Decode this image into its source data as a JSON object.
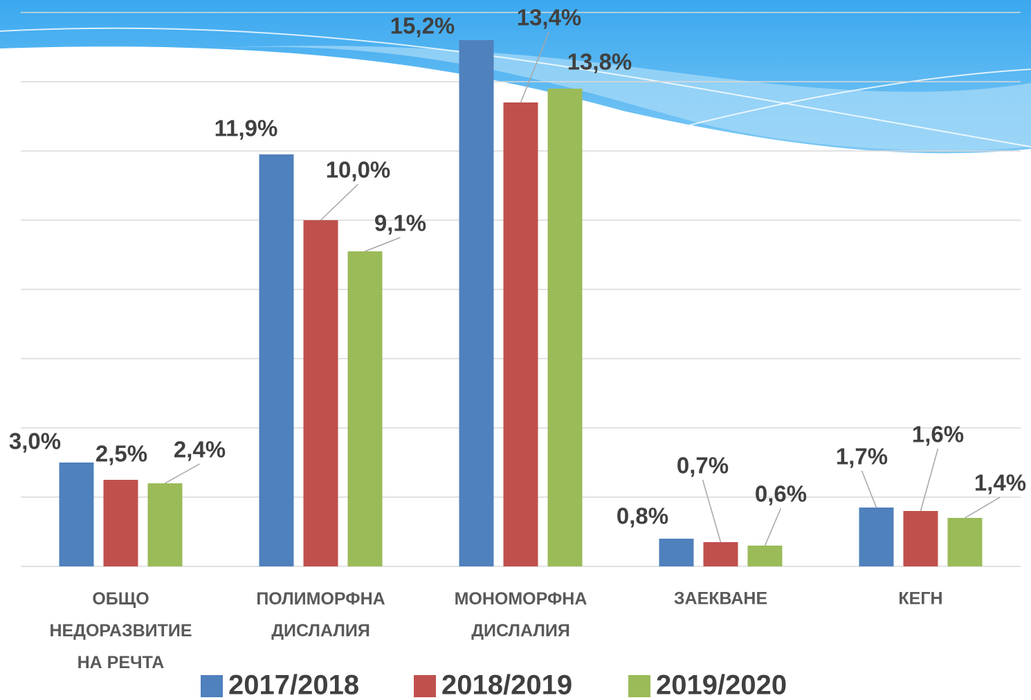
{
  "chart_data": {
    "type": "bar",
    "categories": [
      "ОБЩО\nНЕДОРАЗВИТИЕ\nНА РЕЧТА",
      "ПОЛИМОРФНА\nДИСЛАЛИЯ",
      "МОНОМОРФНА\nДИСЛАЛИЯ",
      "ЗАЕКВАНЕ",
      "КЕГН"
    ],
    "series": [
      {
        "name": "2017/2018",
        "color": "#4f81bd",
        "values": [
          3.0,
          11.9,
          15.2,
          0.8,
          1.7
        ],
        "value_labels": [
          "3,0%",
          "11,9%",
          "15,2%",
          "0,8%",
          "1,7%"
        ]
      },
      {
        "name": "2018/2019",
        "color": "#c0504d",
        "values": [
          2.5,
          10.0,
          13.4,
          0.7,
          1.6
        ],
        "value_labels": [
          "2,5%",
          "10,0%",
          "13,4%",
          "0,7%",
          "1,6%"
        ]
      },
      {
        "name": "2019/2020",
        "color": "#9bbb59",
        "values": [
          2.4,
          9.1,
          13.8,
          0.6,
          1.4
        ],
        "value_labels": [
          "2,4%",
          "9,1%",
          "13,8%",
          "0,6%",
          "1,4%"
        ]
      }
    ],
    "ylim": [
      0,
      16
    ],
    "yticks": [
      0,
      2,
      4,
      6,
      8,
      10,
      12,
      14,
      16
    ],
    "grid": true,
    "legend": "bottom"
  }
}
